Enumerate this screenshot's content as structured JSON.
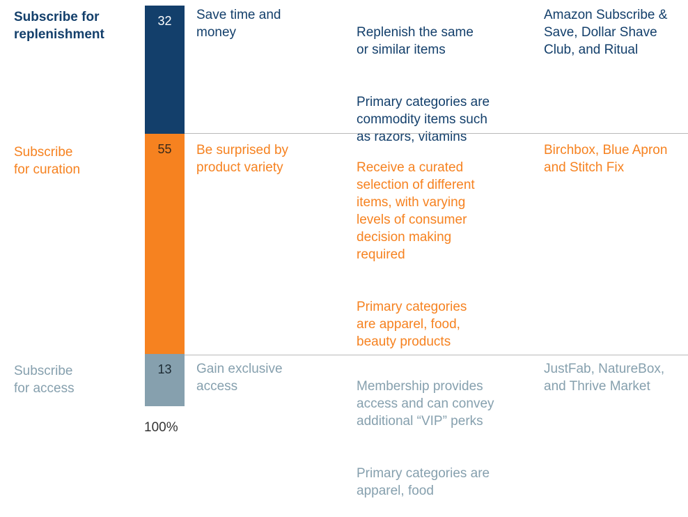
{
  "chart_data": {
    "type": "bar",
    "stacked": true,
    "total_label": "100%",
    "segments": [
      {
        "label": "Subscribe for\nreplenishment",
        "value": 32,
        "color": "#133f6b",
        "benefit": "Save time and\nmoney",
        "description": [
          "Replenish the same\nor similar items",
          "Primary categories are\ncommodity items such\nas razors, vitamins"
        ],
        "examples": "Amazon Subscribe &\nSave, Dollar Shave\nClub, and Ritual"
      },
      {
        "label": "Subscribe\nfor curation",
        "value": 55,
        "color": "#f68220",
        "benefit": "Be surprised by\nproduct variety",
        "description": [
          "Receive a curated\nselection of different\nitems, with varying\nlevels of consumer\ndecision making\nrequired",
          "Primary categories\nare apparel, food,\nbeauty products"
        ],
        "examples": "Birchbox, Blue Apron\nand Stitch Fix"
      },
      {
        "label": "Subscribe\nfor access",
        "value": 13,
        "color": "#86a0ae",
        "benefit": "Gain exclusive\naccess",
        "description": [
          "Membership provides\naccess and can convey\nadditional “VIP” perks",
          "Primary categories are\napparel, food"
        ],
        "examples": "JustFab, NatureBox,\nand Thrive Market"
      }
    ]
  }
}
